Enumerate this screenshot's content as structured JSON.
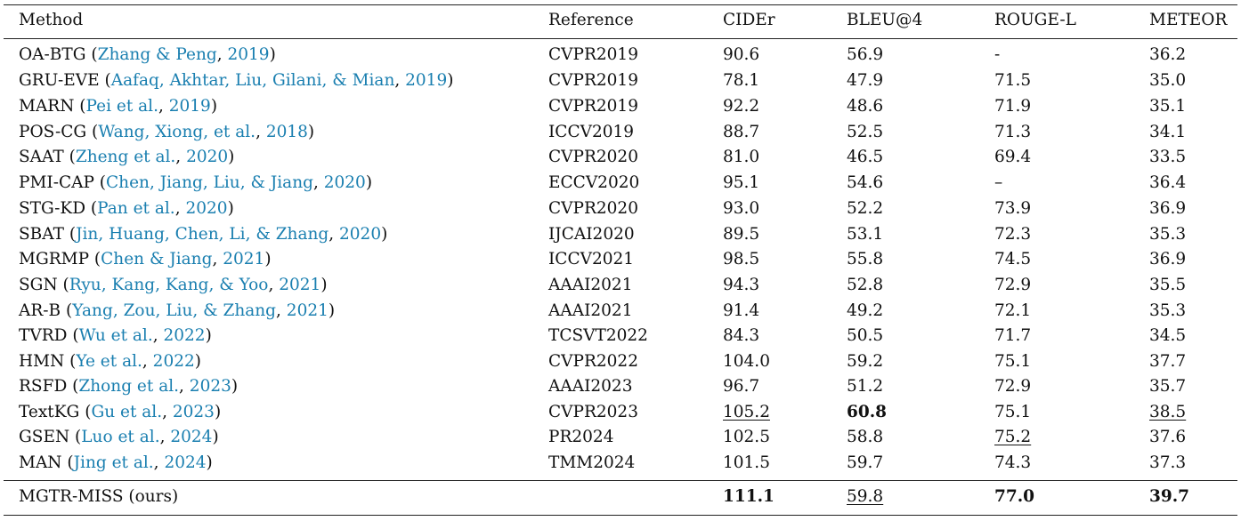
{
  "header": {
    "method": "Method",
    "reference": "Reference",
    "cider": "CIDEr",
    "bleu": "BLEU@4",
    "rouge": "ROUGE-L",
    "meteor": "METEOR"
  },
  "rows": [
    {
      "name": "OA-BTG",
      "citation": "Zhang & Peng",
      "year": "2019",
      "reference": "CVPR2019",
      "cider": "90.6",
      "bleu": "56.9",
      "rouge": "-",
      "meteor": "36.2"
    },
    {
      "name": "GRU-EVE",
      "citation": "Aafaq, Akhtar, Liu, Gilani, & Mian",
      "year": "2019",
      "reference": "CVPR2019",
      "cider": "78.1",
      "bleu": "47.9",
      "rouge": "71.5",
      "meteor": "35.0"
    },
    {
      "name": "MARN",
      "citation": "Pei et al.",
      "year": "2019",
      "reference": "CVPR2019",
      "cider": "92.2",
      "bleu": "48.6",
      "rouge": "71.9",
      "meteor": "35.1"
    },
    {
      "name": "POS-CG",
      "citation": "Wang, Xiong, et al.",
      "year": "2018",
      "reference": "ICCV2019",
      "cider": "88.7",
      "bleu": "52.5",
      "rouge": "71.3",
      "meteor": "34.1"
    },
    {
      "name": "SAAT",
      "citation": "Zheng et al.",
      "year": "2020",
      "reference": "CVPR2020",
      "cider": "81.0",
      "bleu": "46.5",
      "rouge": "69.4",
      "meteor": "33.5"
    },
    {
      "name": "PMI-CAP",
      "citation": "Chen, Jiang, Liu, & Jiang",
      "year": "2020",
      "reference": "ECCV2020",
      "cider": "95.1",
      "bleu": "54.6",
      "rouge": "–",
      "meteor": "36.4"
    },
    {
      "name": "STG-KD",
      "citation": "Pan et al.",
      "year": "2020",
      "reference": "CVPR2020",
      "cider": "93.0",
      "bleu": "52.2",
      "rouge": "73.9",
      "meteor": "36.9"
    },
    {
      "name": "SBAT",
      "citation": "Jin, Huang, Chen, Li, & Zhang",
      "year": "2020",
      "reference": "IJCAI2020",
      "cider": "89.5",
      "bleu": "53.1",
      "rouge": "72.3",
      "meteor": "35.3"
    },
    {
      "name": "MGRMP",
      "citation": "Chen & Jiang",
      "year": "2021",
      "reference": "ICCV2021",
      "cider": "98.5",
      "bleu": "55.8",
      "rouge": "74.5",
      "meteor": "36.9"
    },
    {
      "name": "SGN",
      "citation": "Ryu, Kang, Kang, & Yoo",
      "year": "2021",
      "reference": "AAAI2021",
      "cider": "94.3",
      "bleu": "52.8",
      "rouge": "72.9",
      "meteor": "35.5"
    },
    {
      "name": "AR-B",
      "citation": "Yang, Zou, Liu, & Zhang",
      "year": "2021",
      "reference": "AAAI2021",
      "cider": "91.4",
      "bleu": "49.2",
      "rouge": "72.1",
      "meteor": "35.3"
    },
    {
      "name": "TVRD",
      "citation": "Wu et al.",
      "year": "2022",
      "reference": "TCSVT2022",
      "cider": "84.3",
      "bleu": "50.5",
      "rouge": "71.7",
      "meteor": "34.5"
    },
    {
      "name": "HMN",
      "citation": "Ye et al.",
      "year": "2022",
      "reference": "CVPR2022",
      "cider": "104.0",
      "bleu": "59.2",
      "rouge": "75.1",
      "meteor": "37.7"
    },
    {
      "name": "RSFD",
      "citation": "Zhong et al.",
      "year": "2023",
      "reference": "AAAI2023",
      "cider": "96.7",
      "bleu": "51.2",
      "rouge": "72.9",
      "meteor": "35.7"
    },
    {
      "name": "TextKG",
      "citation": "Gu et al.",
      "year": "2023",
      "reference": "CVPR2023",
      "cider": "105.2",
      "bleu": "60.8",
      "rouge": "75.1",
      "meteor": "38.5"
    },
    {
      "name": "GSEN",
      "citation": "Luo et al.",
      "year": "2024",
      "reference": "PR2024",
      "cider": "102.5",
      "bleu": "58.8",
      "rouge": "75.2",
      "meteor": "37.6"
    },
    {
      "name": "MAN",
      "citation": "Jing et al.",
      "year": "2024",
      "reference": "TMM2024",
      "cider": "101.5",
      "bleu": "59.7",
      "rouge": "74.3",
      "meteor": "37.3"
    }
  ],
  "summary": {
    "name": "MGTR-MISS (ours)",
    "reference": "",
    "cider": "111.1",
    "bleu": "59.8",
    "rouge": "77.0",
    "meteor": "39.7"
  },
  "colors": {
    "citation": "#1a7fb0",
    "text": "#111111",
    "rule": "#222222"
  }
}
